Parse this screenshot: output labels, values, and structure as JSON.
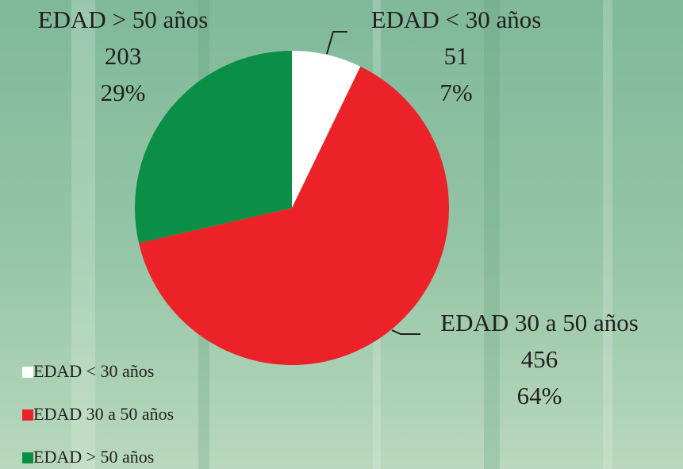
{
  "chart_data": {
    "type": "pie",
    "categories": [
      "EDAD < 30 años",
      "EDAD 30 a 50 años",
      "EDAD > 50 años"
    ],
    "values": [
      51,
      456,
      203
    ],
    "percent_labels": [
      "7%",
      "64%",
      "29%"
    ],
    "colors": [
      "#ffffff",
      "#ec2229",
      "#0b8f46"
    ],
    "legend": "bottom-left"
  }
}
